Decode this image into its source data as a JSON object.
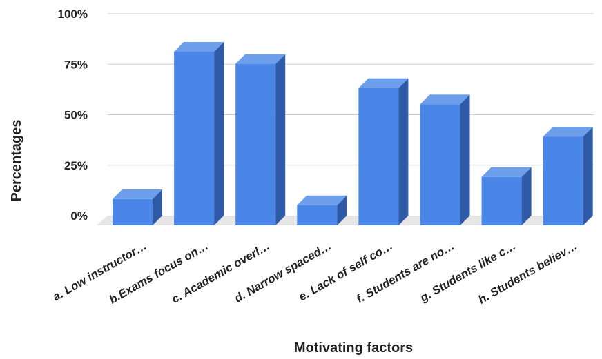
{
  "chart_data": {
    "type": "bar",
    "style": "3d-column",
    "categories": [
      "a. Low instructor…",
      "b.Exams focus on…",
      "c. Academic overl…",
      "d. Narrow spaced…",
      "e. Lack of self co…",
      "f. Students are no…",
      "g. Students like c…",
      "h. Students believ…"
    ],
    "values": [
      13,
      86,
      80,
      10,
      68,
      60,
      24,
      44
    ],
    "unit": "%",
    "ylim": [
      0,
      100
    ],
    "yticks": [
      "0%",
      "25%",
      "50%",
      "75%",
      "100%"
    ],
    "ytick_values": [
      0,
      25,
      50,
      75,
      100
    ],
    "xlabel": "Motivating factors",
    "ylabel": "Percentages",
    "grid": true,
    "legend": "none",
    "colors": {
      "bar_front": "#4a86e8",
      "bar_top": "#6d9eeb",
      "bar_side": "#2f5aa8",
      "floor": "#e6e6e6",
      "grid": "#cccccc"
    }
  }
}
